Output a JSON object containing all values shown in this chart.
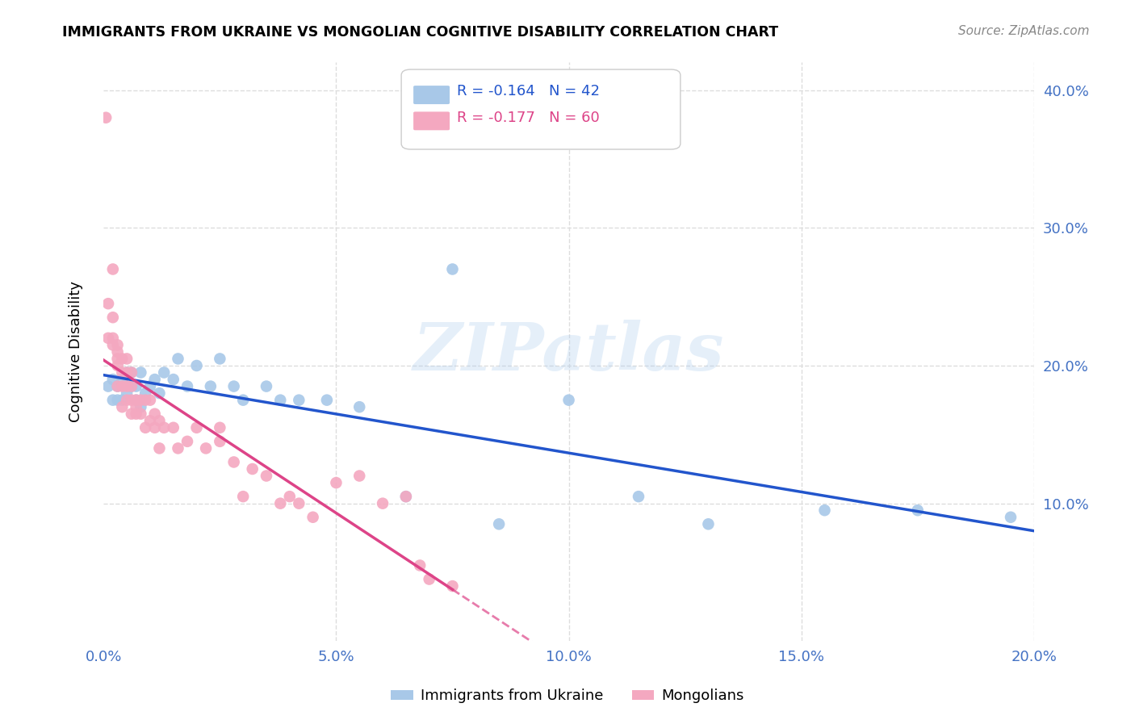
{
  "title": "IMMIGRANTS FROM UKRAINE VS MONGOLIAN COGNITIVE DISABILITY CORRELATION CHART",
  "source": "Source: ZipAtlas.com",
  "ylabel": "Cognitive Disability",
  "watermark": "ZIPatlas",
  "ukraine_R": -0.164,
  "ukraine_N": 42,
  "mongolia_R": -0.177,
  "mongolia_N": 60,
  "x_min": 0.0,
  "x_max": 0.2,
  "y_min": 0.0,
  "y_max": 0.42,
  "ukraine_color": "#a8c8e8",
  "mongolia_color": "#f4a8c0",
  "trendline_ukraine_color": "#2255cc",
  "trendline_mongolia_color": "#dd4488",
  "ukraine_x": [
    0.001,
    0.002,
    0.002,
    0.003,
    0.003,
    0.004,
    0.004,
    0.005,
    0.005,
    0.006,
    0.006,
    0.007,
    0.007,
    0.008,
    0.008,
    0.009,
    0.01,
    0.011,
    0.012,
    0.013,
    0.015,
    0.016,
    0.018,
    0.02,
    0.023,
    0.025,
    0.028,
    0.03,
    0.035,
    0.038,
    0.042,
    0.048,
    0.055,
    0.065,
    0.075,
    0.085,
    0.1,
    0.115,
    0.13,
    0.155,
    0.175,
    0.195
  ],
  "ukraine_y": [
    0.185,
    0.19,
    0.175,
    0.185,
    0.175,
    0.19,
    0.175,
    0.195,
    0.18,
    0.195,
    0.185,
    0.185,
    0.175,
    0.195,
    0.17,
    0.18,
    0.185,
    0.19,
    0.18,
    0.195,
    0.19,
    0.205,
    0.185,
    0.2,
    0.185,
    0.205,
    0.185,
    0.175,
    0.185,
    0.175,
    0.175,
    0.175,
    0.17,
    0.105,
    0.27,
    0.085,
    0.175,
    0.105,
    0.085,
    0.095,
    0.095,
    0.09
  ],
  "mongolia_x": [
    0.0005,
    0.001,
    0.001,
    0.002,
    0.002,
    0.002,
    0.002,
    0.003,
    0.003,
    0.003,
    0.003,
    0.003,
    0.004,
    0.004,
    0.004,
    0.004,
    0.005,
    0.005,
    0.005,
    0.005,
    0.006,
    0.006,
    0.006,
    0.006,
    0.007,
    0.007,
    0.007,
    0.008,
    0.008,
    0.009,
    0.009,
    0.01,
    0.01,
    0.011,
    0.011,
    0.012,
    0.012,
    0.013,
    0.015,
    0.016,
    0.018,
    0.02,
    0.022,
    0.025,
    0.025,
    0.028,
    0.03,
    0.032,
    0.035,
    0.038,
    0.04,
    0.042,
    0.045,
    0.05,
    0.055,
    0.06,
    0.065,
    0.068,
    0.07,
    0.075
  ],
  "mongolia_y": [
    0.38,
    0.245,
    0.22,
    0.27,
    0.235,
    0.22,
    0.215,
    0.215,
    0.21,
    0.205,
    0.2,
    0.185,
    0.205,
    0.195,
    0.185,
    0.17,
    0.205,
    0.195,
    0.185,
    0.175,
    0.195,
    0.185,
    0.175,
    0.165,
    0.175,
    0.17,
    0.165,
    0.175,
    0.165,
    0.175,
    0.155,
    0.175,
    0.16,
    0.165,
    0.155,
    0.16,
    0.14,
    0.155,
    0.155,
    0.14,
    0.145,
    0.155,
    0.14,
    0.145,
    0.155,
    0.13,
    0.105,
    0.125,
    0.12,
    0.1,
    0.105,
    0.1,
    0.09,
    0.115,
    0.12,
    0.1,
    0.105,
    0.055,
    0.045,
    0.04
  ],
  "legend_ukraine_label": "Immigrants from Ukraine",
  "legend_mongolia_label": "Mongolians",
  "xtick_labels": [
    "0.0%",
    "5.0%",
    "10.0%",
    "15.0%",
    "20.0%"
  ],
  "xtick_values": [
    0.0,
    0.05,
    0.1,
    0.15,
    0.2
  ],
  "ytick_labels": [
    "10.0%",
    "20.0%",
    "30.0%",
    "40.0%"
  ],
  "ytick_values": [
    0.1,
    0.2,
    0.3,
    0.4
  ],
  "background_color": "#ffffff",
  "grid_color": "#dddddd",
  "tick_color": "#4472c4"
}
